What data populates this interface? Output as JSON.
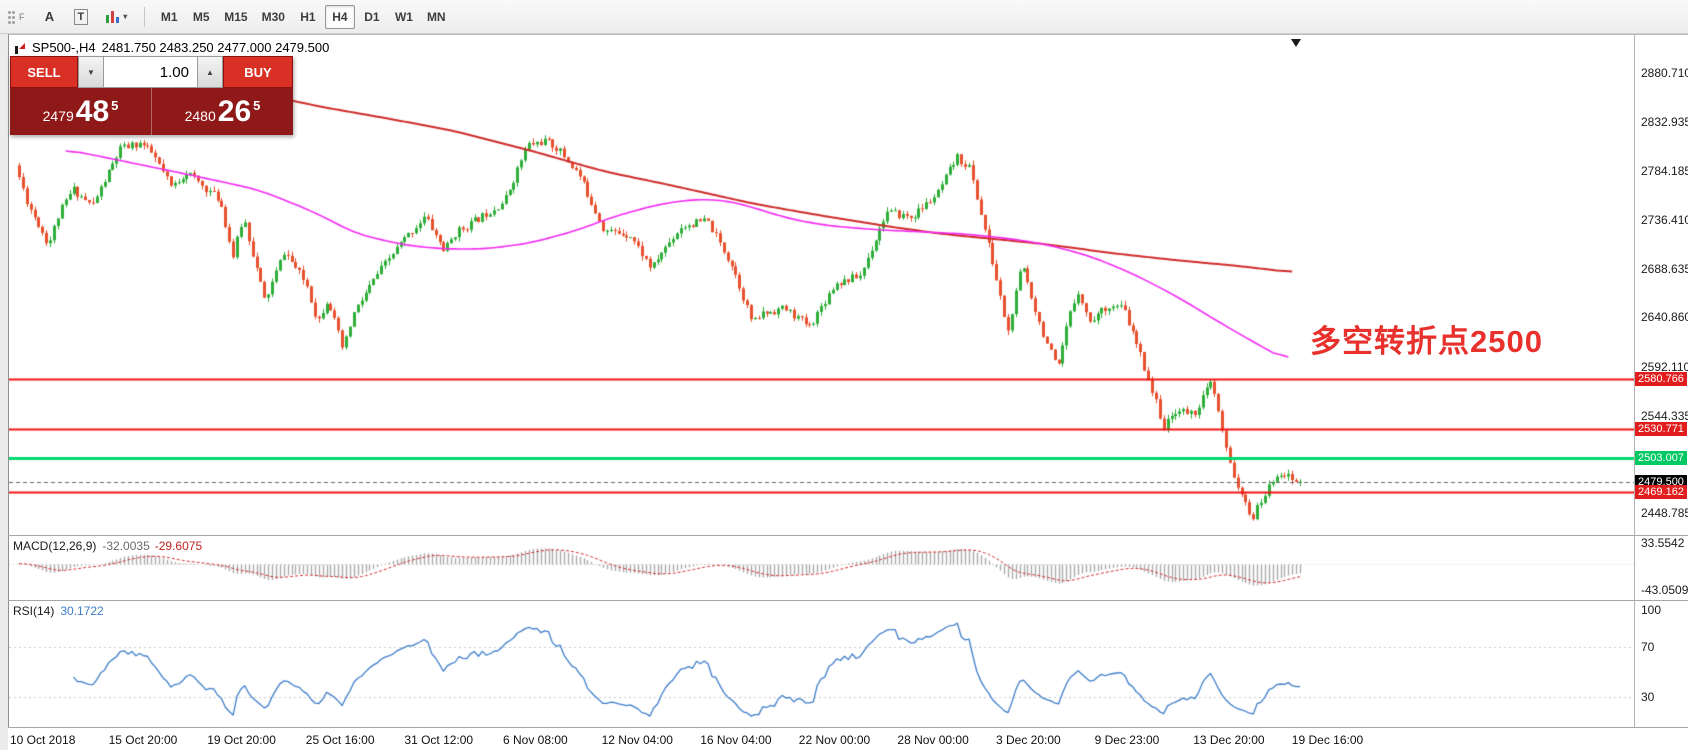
{
  "toolbar": {
    "grip_label": "F",
    "font_tool": "A",
    "text_tool": "T",
    "indicator_caret": "▾",
    "timeframes": [
      "M1",
      "M5",
      "M15",
      "M30",
      "H1",
      "H4",
      "D1",
      "W1",
      "MN"
    ],
    "active_timeframe": "H4"
  },
  "header": {
    "title": "SP500-,H4",
    "ohlc": "2481.750 2483.250 2477.000 2479.500"
  },
  "trade": {
    "sell_label": "SELL",
    "buy_label": "BUY",
    "volume": "1.00",
    "down_glyph": "▼",
    "up_glyph": "▲",
    "sell_price_big": "2479",
    "sell_price_mid": "48",
    "sell_price_sup": "5",
    "buy_price_big": "2480",
    "buy_price_mid": "26",
    "buy_price_sup": "5",
    "colors": {
      "button": "#d93025",
      "price_panel": "#8f1818"
    }
  },
  "annotation": {
    "text": "多空转折点2500",
    "color": "#e8302c"
  },
  "price_axis": {
    "grid_labels": [
      {
        "price": 2880.71,
        "text": "2880.710"
      },
      {
        "price": 2832.935,
        "text": "2832.935"
      },
      {
        "price": 2784.185,
        "text": "2784.185"
      },
      {
        "price": 2736.41,
        "text": "2736.410"
      },
      {
        "price": 2688.635,
        "text": "2688.635"
      },
      {
        "price": 2640.86,
        "text": "2640.860"
      },
      {
        "price": 2592.11,
        "text": "2592.110"
      },
      {
        "price": 2544.335,
        "text": "2544.335"
      },
      {
        "price": 2448.785,
        "text": "2448.785"
      }
    ],
    "badges": [
      {
        "price": 2580.766,
        "text": "2580.766",
        "bg": "#e11d1d"
      },
      {
        "price": 2530.771,
        "text": "2530.771",
        "bg": "#e11d1d"
      },
      {
        "price": 2503.007,
        "text": "2503.007",
        "bg": "#00c964"
      },
      {
        "price": 2479.5,
        "text": "2479.500",
        "bg": "#000000"
      },
      {
        "price": 2469.162,
        "text": "2469.162",
        "bg": "#e11d1d"
      }
    ]
  },
  "time_axis": {
    "labels": [
      "10 Oct 2018",
      "15 Oct 20:00",
      "19 Oct 20:00",
      "25 Oct 16:00",
      "31 Oct 12:00",
      "6 Nov 08:00",
      "12 Nov 04:00",
      "16 Nov 04:00",
      "22 Nov 00:00",
      "28 Nov 00:00",
      "3 Dec 20:00",
      "9 Dec 23:00",
      "13 Dec 20:00",
      "19 Dec 16:00"
    ]
  },
  "chart_data": {
    "type": "candlestick",
    "symbol": "SP500-",
    "period": "H4",
    "visible_price_range": {
      "top": 2917.0,
      "bottom": 2427.2
    },
    "candles": {
      "count": 330,
      "seed": 11,
      "volatility": 5.2,
      "final_close": 2479.5,
      "up_color": "#2fae39",
      "down_color": "#e8512e",
      "waypoints": [
        [
          0.0,
          2790
        ],
        [
          0.01,
          2752
        ],
        [
          0.02,
          2728
        ],
        [
          0.026,
          2712
        ],
        [
          0.034,
          2742
        ],
        [
          0.045,
          2767
        ],
        [
          0.06,
          2750
        ],
        [
          0.082,
          2806
        ],
        [
          0.098,
          2812
        ],
        [
          0.108,
          2800
        ],
        [
          0.122,
          2768
        ],
        [
          0.134,
          2784
        ],
        [
          0.146,
          2770
        ],
        [
          0.16,
          2756
        ],
        [
          0.17,
          2700
        ],
        [
          0.178,
          2740
        ],
        [
          0.195,
          2656
        ],
        [
          0.21,
          2706
        ],
        [
          0.228,
          2672
        ],
        [
          0.236,
          2636
        ],
        [
          0.244,
          2660
        ],
        [
          0.256,
          2608
        ],
        [
          0.264,
          2644
        ],
        [
          0.282,
          2682
        ],
        [
          0.3,
          2712
        ],
        [
          0.32,
          2740
        ],
        [
          0.335,
          2706
        ],
        [
          0.344,
          2724
        ],
        [
          0.362,
          2738
        ],
        [
          0.382,
          2755
        ],
        [
          0.4,
          2810
        ],
        [
          0.414,
          2814
        ],
        [
          0.424,
          2806
        ],
        [
          0.44,
          2781
        ],
        [
          0.46,
          2726
        ],
        [
          0.48,
          2722
        ],
        [
          0.497,
          2688
        ],
        [
          0.503,
          2702
        ],
        [
          0.52,
          2730
        ],
        [
          0.54,
          2736
        ],
        [
          0.56,
          2691
        ],
        [
          0.576,
          2634
        ],
        [
          0.582,
          2644
        ],
        [
          0.6,
          2650
        ],
        [
          0.62,
          2632
        ],
        [
          0.64,
          2674
        ],
        [
          0.66,
          2682
        ],
        [
          0.68,
          2744
        ],
        [
          0.7,
          2739
        ],
        [
          0.72,
          2762
        ],
        [
          0.735,
          2798
        ],
        [
          0.745,
          2788
        ],
        [
          0.762,
          2700
        ],
        [
          0.775,
          2626
        ],
        [
          0.786,
          2694
        ],
        [
          0.8,
          2633
        ],
        [
          0.814,
          2588
        ],
        [
          0.822,
          2638
        ],
        [
          0.83,
          2668
        ],
        [
          0.838,
          2636
        ],
        [
          0.852,
          2652
        ],
        [
          0.865,
          2650
        ],
        [
          0.88,
          2598
        ],
        [
          0.897,
          2532
        ],
        [
          0.906,
          2550
        ],
        [
          0.92,
          2546
        ],
        [
          0.934,
          2578
        ],
        [
          0.946,
          2506
        ],
        [
          0.958,
          2462
        ],
        [
          0.966,
          2444
        ],
        [
          0.976,
          2468
        ],
        [
          0.986,
          2490
        ],
        [
          1.0,
          2479.5
        ]
      ]
    },
    "ma_lines": [
      {
        "name": "ma-slow",
        "color": "#cf2b2b",
        "width": 2,
        "points": [
          [
            0.177,
            2863
          ],
          [
            0.238,
            2847
          ],
          [
            0.288,
            2836
          ],
          [
            0.339,
            2824
          ],
          [
            0.398,
            2805
          ],
          [
            0.457,
            2784
          ],
          [
            0.507,
            2771
          ],
          [
            0.575,
            2752
          ],
          [
            0.625,
            2741
          ],
          [
            0.684,
            2729
          ],
          [
            0.726,
            2722
          ],
          [
            0.76,
            2718
          ],
          [
            0.806,
            2712
          ],
          [
            0.852,
            2704
          ],
          [
            0.903,
            2697
          ],
          [
            0.954,
            2691
          ],
          [
            0.994,
            2685
          ]
        ]
      },
      {
        "name": "ma-fast",
        "color": "#f32bf3",
        "width": 1.6,
        "points": [
          [
            0.035,
            2806
          ],
          [
            0.086,
            2793
          ],
          [
            0.136,
            2780
          ],
          [
            0.187,
            2766
          ],
          [
            0.229,
            2745
          ],
          [
            0.263,
            2723
          ],
          [
            0.3,
            2712
          ],
          [
            0.33,
            2708
          ],
          [
            0.365,
            2708
          ],
          [
            0.4,
            2714
          ],
          [
            0.435,
            2726
          ],
          [
            0.465,
            2740
          ],
          [
            0.5,
            2752
          ],
          [
            0.53,
            2757
          ],
          [
            0.555,
            2755
          ],
          [
            0.58,
            2746
          ],
          [
            0.6,
            2738
          ],
          [
            0.63,
            2731
          ],
          [
            0.667,
            2727
          ],
          [
            0.7,
            2725
          ],
          [
            0.735,
            2723
          ],
          [
            0.768,
            2719
          ],
          [
            0.8,
            2713
          ],
          [
            0.836,
            2701
          ],
          [
            0.869,
            2684
          ],
          [
            0.903,
            2662
          ],
          [
            0.937,
            2636
          ],
          [
            0.966,
            2615
          ],
          [
            0.992,
            2597
          ]
        ]
      }
    ],
    "hlines": [
      {
        "price": 2580.766,
        "color": "#ee1414",
        "width": 2
      },
      {
        "price": 2530.771,
        "color": "#ee1414",
        "width": 2
      },
      {
        "price": 2503.007,
        "color": "#00d96e",
        "width": 3
      },
      {
        "price": 2469.162,
        "color": "#ee1414",
        "width": 2
      }
    ],
    "bid_line": {
      "price": 2479.5,
      "color": "#666666"
    },
    "macd": {
      "label": "MACD(12,26,9)",
      "value_main": "-32.0035",
      "value_signal": "-29.6075",
      "fast": 12,
      "slow": 26,
      "signal": 9,
      "view_range": {
        "top": 45.0,
        "bottom": -59.3
      },
      "axis_labels": [
        {
          "value": 33.5542,
          "text": "33.5542"
        },
        {
          "value": -43.0509,
          "text": "-43.0509"
        }
      ],
      "hist_color": "#ababab",
      "signal_color": "#d23030",
      "zero_level_color": "#cccccc"
    },
    "rsi": {
      "label": "RSI(14)",
      "value": "30.1722",
      "period": 14,
      "view_range": {
        "top": 107.2,
        "bottom": 5.9
      },
      "axis_labels": [
        {
          "value": 100,
          "text": "100"
        },
        {
          "value": 70,
          "text": "70"
        },
        {
          "value": 30,
          "text": "30"
        }
      ],
      "levels": [
        70,
        30
      ],
      "line_color": "#3f7ec9",
      "level_color": "#c9c9c9"
    }
  }
}
